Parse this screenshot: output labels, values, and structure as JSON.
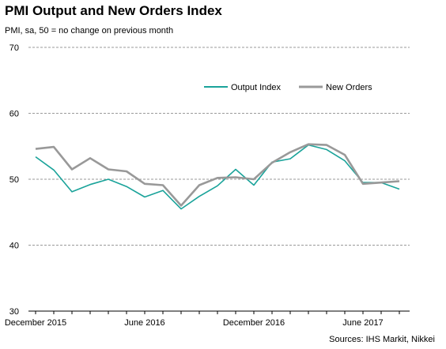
{
  "header": {
    "title": "PMI Output and New Orders Index",
    "subtitle": "PMI,  sa, 50 = no change on previous month",
    "source": "Sources: IHS Markit,  Nikkei"
  },
  "chart_data": {
    "type": "line",
    "title": "PMI Output and New Orders Index",
    "ylabel": "PMI,  sa, 50 = no change on previous month",
    "ylim": [
      30,
      70
    ],
    "yticks": [
      30,
      40,
      50,
      60,
      70
    ],
    "reference_line": 50,
    "x": [
      "2015-12",
      "2016-01",
      "2016-02",
      "2016-03",
      "2016-04",
      "2016-05",
      "2016-06",
      "2016-07",
      "2016-08",
      "2016-09",
      "2016-10",
      "2016-11",
      "2016-12",
      "2017-01",
      "2017-02",
      "2017-03",
      "2017-04",
      "2017-05",
      "2017-06",
      "2017-07",
      "2017-08"
    ],
    "xtick_labels": [
      {
        "x": "2015-12",
        "label": "December 2015"
      },
      {
        "x": "2016-06",
        "label": "June 2016"
      },
      {
        "x": "2016-12",
        "label": "December 2016"
      },
      {
        "x": "2017-06",
        "label": "June 2017"
      }
    ],
    "series": [
      {
        "name": "Output Index",
        "color": "#1aa39a",
        "values": [
          53.4,
          51.4,
          48.1,
          49.2,
          50.0,
          48.9,
          47.3,
          48.3,
          45.5,
          47.4,
          49.0,
          51.5,
          49.1,
          52.6,
          53.1,
          55.2,
          54.5,
          52.8,
          49.5,
          49.5,
          48.5
        ]
      },
      {
        "name": "New Orders",
        "color": "#999999",
        "values": [
          54.6,
          54.9,
          51.5,
          53.2,
          51.5,
          51.2,
          49.3,
          49.1,
          46.0,
          49.1,
          50.2,
          50.3,
          50.0,
          52.5,
          54.1,
          55.3,
          55.2,
          53.7,
          49.3,
          49.5,
          49.7
        ]
      }
    ],
    "legend_position": "top-right",
    "grid": "horizontal dashed"
  }
}
